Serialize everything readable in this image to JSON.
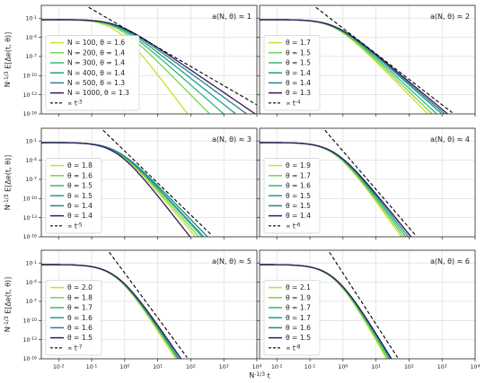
{
  "chart_data": {
    "type": "line",
    "layout": "3x2 grid of log-log panels sharing x and y axes",
    "x_scale": "log",
    "y_scale": "log",
    "xlim": [
      0.003,
      10000
    ],
    "ylim": [
      1e-16,
      10
    ],
    "xlabel": "N^{-1/3} t",
    "ylabel": "N^{-1/3} E[Δe(t, θ)]",
    "x_tick_labels": [
      "10^{-2}",
      "10^{-1}",
      "10^{0}",
      "10^{1}",
      "10^{2}",
      "10^{3}",
      "10^{4}"
    ],
    "y_tick_labels": [
      "10^{-1}",
      "10^{-4}",
      "10^{-7}",
      "10^{-10}",
      "10^{-13}",
      "10^{-16}"
    ],
    "series_colors": [
      "#c7e02d",
      "#7cd250",
      "#35b779",
      "#1f9e89",
      "#26828e",
      "#35165e"
    ],
    "reference_line_style": "black dashed",
    "legend_placement": "lower-left",
    "panels": [
      {
        "annotation": "a(N, θ) ≈ 1",
        "reference": "∝ t^{-3}",
        "reference_exponent": -3,
        "series": [
          {
            "name": "N = 100, θ = 1.6",
            "N": 100,
            "theta": 1.6,
            "tail_decay": 6.0,
            "shoulder": 0.0
          },
          {
            "name": "N = 200, θ = 1.4",
            "N": 200,
            "theta": 1.4,
            "tail_decay": 4.6,
            "shoulder": 0.0
          },
          {
            "name": "N = 300, θ = 1.4",
            "N": 300,
            "theta": 1.4,
            "tail_decay": 4.0,
            "shoulder": 0.0
          },
          {
            "name": "N = 400, θ = 1.4",
            "N": 400,
            "theta": 1.4,
            "tail_decay": 3.6,
            "shoulder": 0.0
          },
          {
            "name": "N = 500, θ = 1.3",
            "N": 500,
            "theta": 1.3,
            "tail_decay": 3.3,
            "shoulder": 0.0
          },
          {
            "name": "N = 1000, θ = 1.3",
            "N": 1000,
            "theta": 1.3,
            "tail_decay": 3.1,
            "shoulder": 0.0
          }
        ]
      },
      {
        "annotation": "a(N, θ) ≈ 2",
        "reference": "∝ t^{-4}",
        "reference_exponent": -4,
        "series": [
          {
            "name": "θ = 1.7",
            "theta": 1.7,
            "tail_decay": 4.6,
            "shoulder": 0.0
          },
          {
            "name": "θ = 1.5",
            "theta": 1.5,
            "tail_decay": 4.4,
            "shoulder": 0.0
          },
          {
            "name": "θ = 1.5",
            "theta": 1.5,
            "tail_decay": 4.2,
            "shoulder": 0.0
          },
          {
            "name": "θ = 1.4",
            "theta": 1.4,
            "tail_decay": 4.0,
            "shoulder": 0.0
          },
          {
            "name": "θ = 1.4",
            "theta": 1.4,
            "tail_decay": 3.9,
            "shoulder": 0.0
          },
          {
            "name": "θ = 1.3",
            "theta": 1.3,
            "tail_decay": 3.8,
            "shoulder": 0.0
          }
        ]
      },
      {
        "annotation": "a(N, θ) ≈ 3",
        "reference": "∝ t^{-5}",
        "reference_exponent": -5,
        "series": [
          {
            "name": "θ = 1.8",
            "theta": 1.8,
            "tail_decay": 5.4,
            "shoulder": 0.0
          },
          {
            "name": "θ = 1.6",
            "theta": 1.6,
            "tail_decay": 5.2,
            "shoulder": 0.0
          },
          {
            "name": "θ = 1.5",
            "theta": 1.5,
            "tail_decay": 5.0,
            "shoulder": 0.0
          },
          {
            "name": "θ = 1.5",
            "theta": 1.5,
            "tail_decay": 4.9,
            "shoulder": 0.0
          },
          {
            "name": "θ = 1.4",
            "theta": 1.4,
            "tail_decay": 4.7,
            "shoulder": 0.0
          },
          {
            "name": "θ = 1.4",
            "theta": 1.4,
            "tail_decay": 5.8,
            "shoulder": 0.0
          }
        ]
      },
      {
        "annotation": "a(N, θ) ≈ 4",
        "reference": "∝ t^{-6}",
        "reference_exponent": -6,
        "series": [
          {
            "name": "θ = 1.9",
            "theta": 1.9,
            "tail_decay": 6.4,
            "shoulder": 0.0
          },
          {
            "name": "θ = 1.7",
            "theta": 1.7,
            "tail_decay": 6.2,
            "shoulder": 0.0
          },
          {
            "name": "θ = 1.6",
            "theta": 1.6,
            "tail_decay": 6.0,
            "shoulder": 0.0
          },
          {
            "name": "θ = 1.5",
            "theta": 1.5,
            "tail_decay": 5.8,
            "shoulder": 0.0
          },
          {
            "name": "θ = 1.5",
            "theta": 1.5,
            "tail_decay": 5.6,
            "shoulder": 0.0
          },
          {
            "name": "θ = 1.4",
            "theta": 1.4,
            "tail_decay": 5.6,
            "shoulder": 0.0
          }
        ]
      },
      {
        "annotation": "a(N, θ) ≈ 5",
        "reference": "∝ t^{-7}",
        "reference_exponent": -7,
        "series": [
          {
            "name": "θ = 2.0",
            "theta": 2.0,
            "tail_decay": 7.2,
            "shoulder": 0.0
          },
          {
            "name": "θ = 1.8",
            "theta": 1.8,
            "tail_decay": 7.0,
            "shoulder": 0.0
          },
          {
            "name": "θ = 1.7",
            "theta": 1.7,
            "tail_decay": 6.9,
            "shoulder": 0.0
          },
          {
            "name": "θ = 1.6",
            "theta": 1.6,
            "tail_decay": 6.8,
            "shoulder": 0.0
          },
          {
            "name": "θ = 1.6",
            "theta": 1.6,
            "tail_decay": 6.6,
            "shoulder": 0.0
          },
          {
            "name": "θ = 1.5",
            "theta": 1.5,
            "tail_decay": 6.6,
            "shoulder": 0.0
          }
        ]
      },
      {
        "annotation": "a(N, θ) ≈ 6",
        "reference": "∝ t^{-8}",
        "reference_exponent": -8,
        "series": [
          {
            "name": "θ = 2.1",
            "theta": 2.1,
            "tail_decay": 8.2,
            "shoulder": 0.0
          },
          {
            "name": "θ = 1.9",
            "theta": 1.9,
            "tail_decay": 8.0,
            "shoulder": 0.0
          },
          {
            "name": "θ = 1.7",
            "theta": 1.7,
            "tail_decay": 7.8,
            "shoulder": 0.0
          },
          {
            "name": "θ = 1.7",
            "theta": 1.7,
            "tail_decay": 7.6,
            "shoulder": 0.0
          },
          {
            "name": "θ = 1.6",
            "theta": 1.6,
            "tail_decay": 7.5,
            "shoulder": 0.0
          },
          {
            "name": "θ = 1.5",
            "theta": 1.5,
            "tail_decay": 7.5,
            "shoulder": 0.0
          }
        ]
      }
    ]
  }
}
